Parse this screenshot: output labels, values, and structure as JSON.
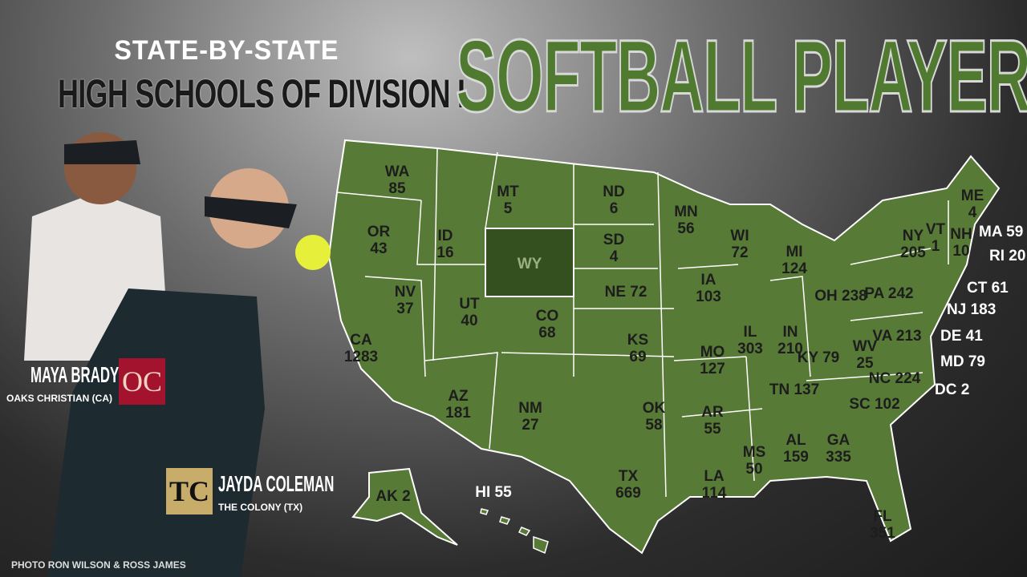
{
  "header": {
    "subtitle_line1": "STATE-BY-STATE",
    "subtitle_line2": "HIGH SCHOOLS OF DIVISION I",
    "title": "SOFTBALL PLAYERS"
  },
  "colors": {
    "map_fill": "#577a36",
    "highlight_fill": "#34501f",
    "title_green": "#4f7a2f",
    "oc_red": "#a3132e",
    "colony_gold": "#c8ad6a"
  },
  "states": [
    {
      "abbr": "WA",
      "value": "85"
    },
    {
      "abbr": "OR",
      "value": "43"
    },
    {
      "abbr": "CA",
      "value": "1283"
    },
    {
      "abbr": "NV",
      "value": "37"
    },
    {
      "abbr": "ID",
      "value": "16"
    },
    {
      "abbr": "MT",
      "value": "5"
    },
    {
      "abbr": "WY",
      "value": ""
    },
    {
      "abbr": "UT",
      "value": "40"
    },
    {
      "abbr": "AZ",
      "value": "181"
    },
    {
      "abbr": "CO",
      "value": "68"
    },
    {
      "abbr": "NM",
      "value": "27"
    },
    {
      "abbr": "ND",
      "value": "6"
    },
    {
      "abbr": "SD",
      "value": "4"
    },
    {
      "abbr": "NE",
      "value": "72"
    },
    {
      "abbr": "KS",
      "value": "69"
    },
    {
      "abbr": "OK",
      "value": "58"
    },
    {
      "abbr": "TX",
      "value": "669"
    },
    {
      "abbr": "MN",
      "value": "56"
    },
    {
      "abbr": "IA",
      "value": "103"
    },
    {
      "abbr": "MO",
      "value": "127"
    },
    {
      "abbr": "AR",
      "value": "55"
    },
    {
      "abbr": "LA",
      "value": "114"
    },
    {
      "abbr": "WI",
      "value": "72"
    },
    {
      "abbr": "IL",
      "value": "303"
    },
    {
      "abbr": "MI",
      "value": "124"
    },
    {
      "abbr": "IN",
      "value": "210"
    },
    {
      "abbr": "OH",
      "value": "238"
    },
    {
      "abbr": "KY",
      "value": "79"
    },
    {
      "abbr": "TN",
      "value": "137"
    },
    {
      "abbr": "MS",
      "value": "50"
    },
    {
      "abbr": "AL",
      "value": "159"
    },
    {
      "abbr": "GA",
      "value": "335"
    },
    {
      "abbr": "FL",
      "value": "351"
    },
    {
      "abbr": "SC",
      "value": "102"
    },
    {
      "abbr": "NC",
      "value": "224"
    },
    {
      "abbr": "VA",
      "value": "213"
    },
    {
      "abbr": "WV",
      "value": "25"
    },
    {
      "abbr": "PA",
      "value": "242"
    },
    {
      "abbr": "NY",
      "value": "205"
    },
    {
      "abbr": "VT",
      "value": "1"
    },
    {
      "abbr": "NH",
      "value": "10"
    },
    {
      "abbr": "ME",
      "value": "4"
    },
    {
      "abbr": "AK",
      "value": "2"
    },
    {
      "abbr": "HI",
      "value": "55"
    },
    {
      "abbr": "MA",
      "value": "59"
    },
    {
      "abbr": "RI",
      "value": "20"
    },
    {
      "abbr": "CT",
      "value": "61"
    },
    {
      "abbr": "NJ",
      "value": "183"
    },
    {
      "abbr": "DE",
      "value": "41"
    },
    {
      "abbr": "MD",
      "value": "79"
    },
    {
      "abbr": "DC",
      "value": "2"
    }
  ],
  "players": [
    {
      "name": "MAYA BRADY",
      "school": "OAKS CHRISTIAN (CA)",
      "logo": "OC"
    },
    {
      "name": "JAYDA COLEMAN",
      "school": "THE COLONY (TX)",
      "logo": "TC"
    }
  ],
  "credit": "PHOTO RON WILSON & ROSS JAMES"
}
